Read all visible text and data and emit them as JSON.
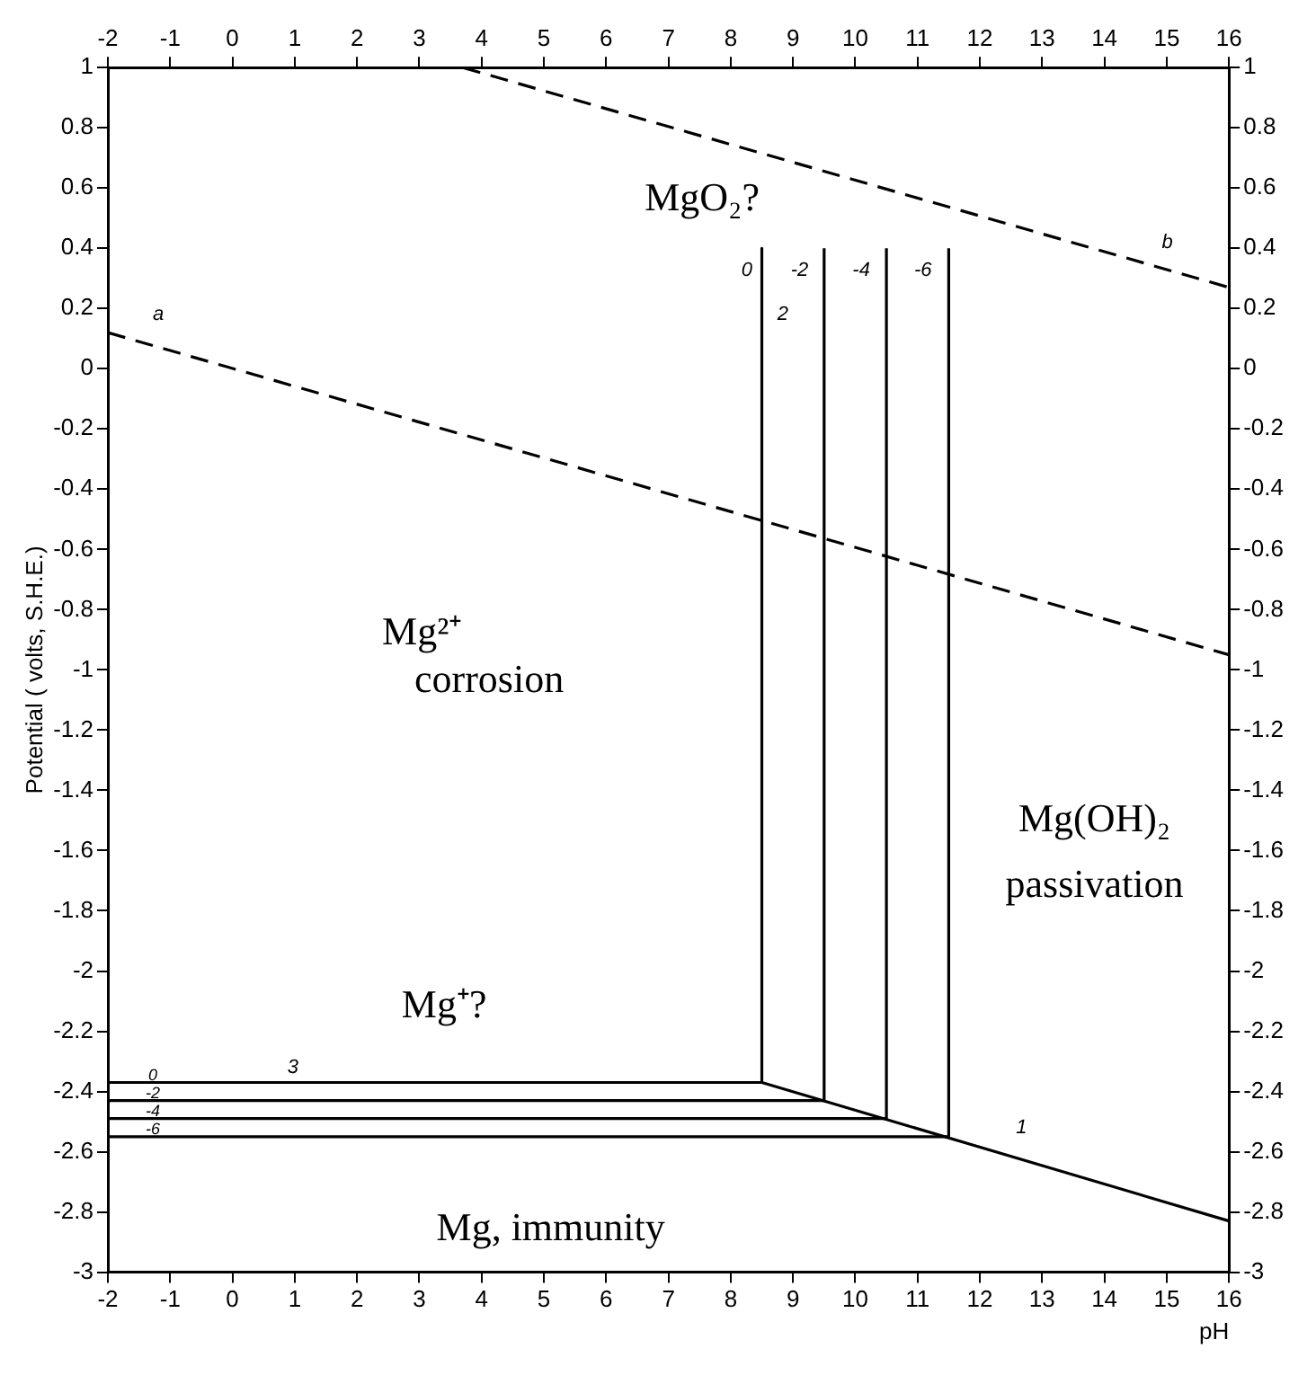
{
  "chart_data": {
    "type": "line",
    "xlabel": "pH",
    "ylabel": "Potential ( volts, S.H.E.)",
    "xlim": [
      -2,
      16
    ],
    "xticks": [
      -2,
      -1,
      0,
      1,
      2,
      3,
      4,
      5,
      6,
      7,
      8,
      9,
      10,
      11,
      12,
      13,
      14,
      15,
      16
    ],
    "x2lim": [
      -2,
      16
    ],
    "x2ticks": [
      -2,
      -1,
      0,
      1,
      2,
      3,
      4,
      5,
      6,
      7,
      8,
      9,
      10,
      11,
      12,
      13,
      14,
      15,
      16
    ],
    "ylim": [
      -3,
      1
    ],
    "yticks": [
      -3,
      -2.8,
      -2.6,
      -2.4,
      -2.2,
      -2,
      -1.8,
      -1.6,
      -1.4,
      -1.2,
      -1,
      -0.8,
      -0.6,
      -0.4,
      -0.2,
      0,
      0.2,
      0.4,
      0.6,
      0.8,
      1
    ],
    "y2lim": [
      -3,
      1
    ],
    "y2ticks": [
      -3,
      -2.8,
      -2.6,
      -2.4,
      -2.2,
      -2,
      -1.8,
      -1.6,
      -1.4,
      -1.2,
      -1,
      -0.8,
      -0.6,
      -0.4,
      -0.2,
      0,
      0.2,
      0.4,
      0.6,
      0.8,
      1
    ],
    "grid": false,
    "legend": false,
    "marker": "none",
    "series": [
      {
        "color": "#000000",
        "line_style": "dashed",
        "x": [
          -2,
          16
        ],
        "values": [
          0.12,
          -0.95
        ]
      },
      {
        "color": "#000000",
        "line_style": "dashed",
        "x": [
          3.7,
          16
        ],
        "values": [
          1,
          0.27
        ]
      },
      {
        "color": "#000000",
        "line_style": "solid",
        "x": [
          -2,
          8.5,
          8.5,
          8.5,
          16
        ],
        "values": [
          -2.37,
          -2.37,
          0.4,
          -2.37,
          -2.83
        ]
      },
      {
        "color": "#000000",
        "line_style": "solid",
        "x": [
          -2,
          9.5,
          9.5
        ],
        "values": [
          -2.43,
          -2.43,
          0.4
        ]
      },
      {
        "color": "#000000",
        "line_style": "solid",
        "x": [
          -2,
          10.5,
          10.5
        ],
        "values": [
          -2.49,
          -2.49,
          0.4
        ]
      },
      {
        "color": "#000000",
        "line_style": "solid",
        "x": [
          -2,
          11.5,
          11.5
        ],
        "values": [
          -2.55,
          -2.55,
          0.4
        ]
      }
    ],
    "annotations": [
      "MgO₂?",
      "Mg²⁺",
      "corrosion",
      "Mg(OH)₂",
      "passivation",
      "Mg⁺?",
      "Mg, immunity",
      "a",
      "b",
      "1",
      "2",
      "3",
      "0",
      "-2",
      "-4",
      "-6",
      "0",
      "-2",
      "-4",
      "-6"
    ]
  }
}
